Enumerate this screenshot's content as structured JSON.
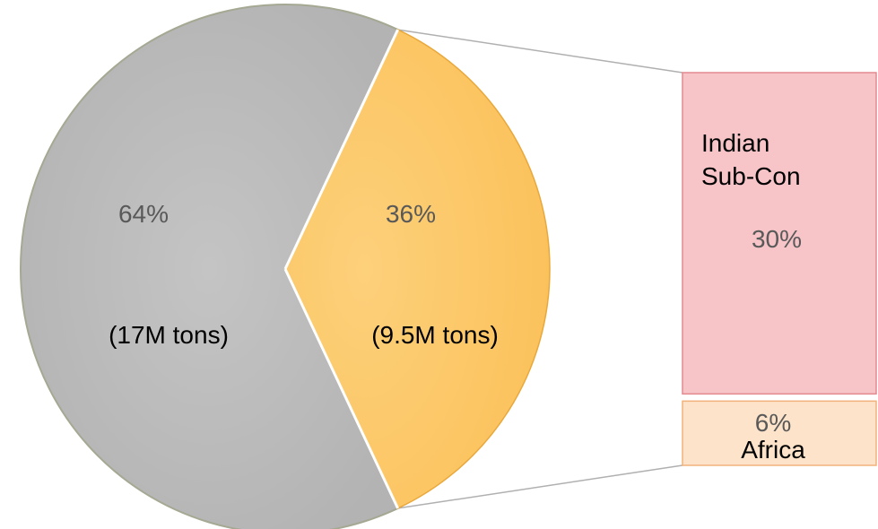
{
  "chart_data": {
    "type": "bar-of-pie",
    "title": "",
    "pie": {
      "slices": [
        {
          "percent": 64,
          "label": "64%",
          "detail": "(17M tons)",
          "color": "#bfbfbf",
          "stroke": "#a5a892"
        },
        {
          "percent": 36,
          "label": "36%",
          "detail": "(9.5M tons)",
          "color": "#fcc86a",
          "stroke": "#e8a83c"
        }
      ]
    },
    "bar": {
      "segments": [
        {
          "name": "Indian Sub-Con",
          "name_lines": [
            "Indian",
            "Sub-Con"
          ],
          "percent": 30,
          "label": "30%",
          "color": "#f7c5c8",
          "stroke": "#e48a8f"
        },
        {
          "name": "Africa",
          "name_lines": [
            "Africa"
          ],
          "percent": 6,
          "label": "6%",
          "color": "#fde3c9",
          "stroke": "#f2b27c"
        }
      ]
    },
    "connector_color": "#b0b0b0",
    "legend": "none"
  }
}
